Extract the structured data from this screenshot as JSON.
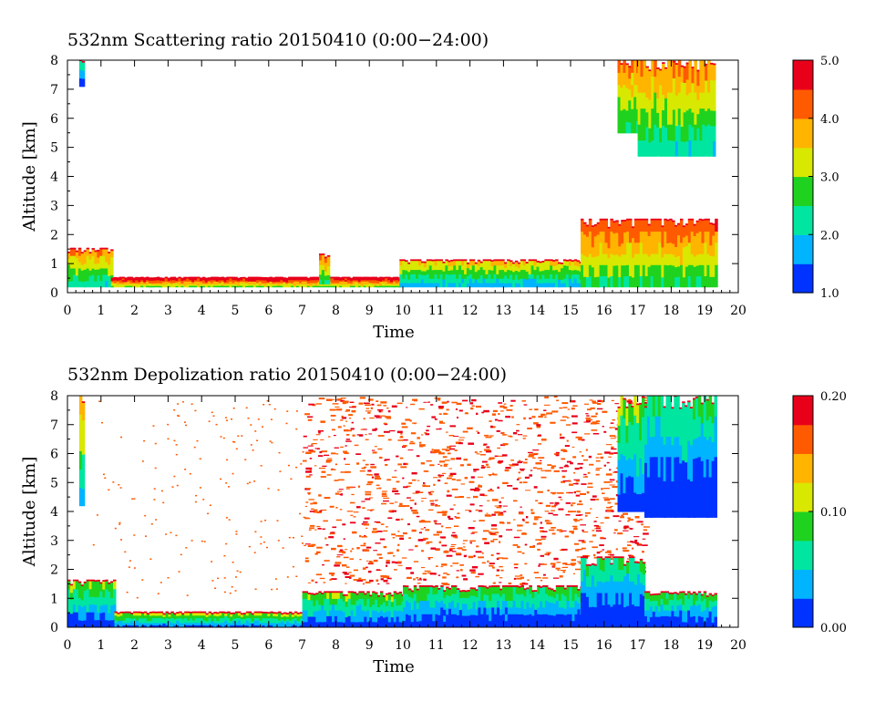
{
  "chart_data": [
    {
      "type": "heatmap",
      "title": "532nm Scattering ratio  20150410 (0:00−24:00)",
      "xlabel": "Time",
      "ylabel": "Altitude [km]",
      "xlim": [
        0,
        20
      ],
      "ylim": [
        0,
        8
      ],
      "xticks": [
        "0",
        "1",
        "2",
        "3",
        "4",
        "5",
        "6",
        "7",
        "8",
        "9",
        "10",
        "11",
        "12",
        "13",
        "14",
        "15",
        "16",
        "17",
        "18",
        "19",
        "20"
      ],
      "yticks": [
        "0",
        "1",
        "2",
        "3",
        "4",
        "5",
        "6",
        "7",
        "8"
      ],
      "colorbar": {
        "range": [
          1.0,
          5.0
        ],
        "ticks": [
          "1.0",
          "2.0",
          "3.0",
          "4.0",
          "5.0"
        ],
        "colors": [
          "#0033ff",
          "#00b4ff",
          "#00e6a0",
          "#1fd21f",
          "#d8e800",
          "#ffb400",
          "#ff5a00",
          "#e8001a"
        ]
      },
      "features": [
        {
          "x0": 0.0,
          "x1": 1.3,
          "y0": 0.2,
          "y1": 1.5,
          "level": 0.55
        },
        {
          "x0": 1.3,
          "x1": 9.9,
          "y0": 0.2,
          "y1": 0.5,
          "level": 0.75
        },
        {
          "x0": 7.5,
          "x1": 7.8,
          "y0": 0.3,
          "y1": 1.3,
          "level": 0.6
        },
        {
          "x0": 9.9,
          "x1": 15.3,
          "y0": 0.2,
          "y1": 1.1,
          "level": 0.45
        },
        {
          "x0": 15.3,
          "x1": 19.3,
          "y0": 0.2,
          "y1": 2.5,
          "level": 0.65
        },
        {
          "x0": 16.4,
          "x1": 17.0,
          "y0": 5.5,
          "y1": 8.0,
          "level": 0.6
        },
        {
          "x0": 17.0,
          "x1": 19.3,
          "y0": 4.7,
          "y1": 8.0,
          "level": 0.55
        },
        {
          "x0": 0.35,
          "x1": 0.45,
          "y0": 7.1,
          "y1": 8.0,
          "level": 0.2
        }
      ]
    },
    {
      "type": "heatmap",
      "title": "532nm Depolization ratio  20150410 (0:00−24:00)",
      "xlabel": "Time",
      "ylabel": "Altitude [km]",
      "xlim": [
        0,
        20
      ],
      "ylim": [
        0,
        8
      ],
      "xticks": [
        "0",
        "1",
        "2",
        "3",
        "4",
        "5",
        "6",
        "7",
        "8",
        "9",
        "10",
        "11",
        "12",
        "13",
        "14",
        "15",
        "16",
        "17",
        "18",
        "19",
        "20"
      ],
      "yticks": [
        "0",
        "1",
        "2",
        "3",
        "4",
        "5",
        "6",
        "7",
        "8"
      ],
      "colorbar": {
        "range": [
          0.0,
          0.2
        ],
        "ticks": [
          "0.00",
          "0.10",
          "0.20"
        ],
        "colors": [
          "#0033ff",
          "#00b4ff",
          "#00e6a0",
          "#1fd21f",
          "#d8e800",
          "#ffb400",
          "#ff5a00",
          "#e8001a"
        ]
      },
      "features": [
        {
          "x0": 0.0,
          "x1": 1.4,
          "y0": 0.0,
          "y1": 1.6,
          "level": 0.3
        },
        {
          "x0": 1.4,
          "x1": 7.0,
          "y0": 0.0,
          "y1": 0.5,
          "level": 0.35
        },
        {
          "x0": 7.0,
          "x1": 10.0,
          "y0": 0.0,
          "y1": 1.2,
          "level": 0.3
        },
        {
          "x0": 10.0,
          "x1": 15.3,
          "y0": 0.0,
          "y1": 1.4,
          "level": 0.25
        },
        {
          "x0": 15.3,
          "x1": 17.2,
          "y0": 0.0,
          "y1": 2.4,
          "level": 0.2
        },
        {
          "x0": 17.2,
          "x1": 19.3,
          "y0": 0.0,
          "y1": 1.2,
          "level": 0.25
        },
        {
          "x0": 16.4,
          "x1": 17.2,
          "y0": 4.0,
          "y1": 8.0,
          "level": 0.3
        },
        {
          "x0": 17.2,
          "x1": 19.3,
          "y0": 3.8,
          "y1": 8.0,
          "level": 0.2
        },
        {
          "x0": 0.35,
          "x1": 0.45,
          "y0": 4.2,
          "y1": 8.0,
          "level": 0.5
        }
      ],
      "noise_region": {
        "x0": 7.0,
        "x1": 17.2,
        "y0": 1.5,
        "y1": 8.0,
        "level": 0.85
      }
    }
  ]
}
